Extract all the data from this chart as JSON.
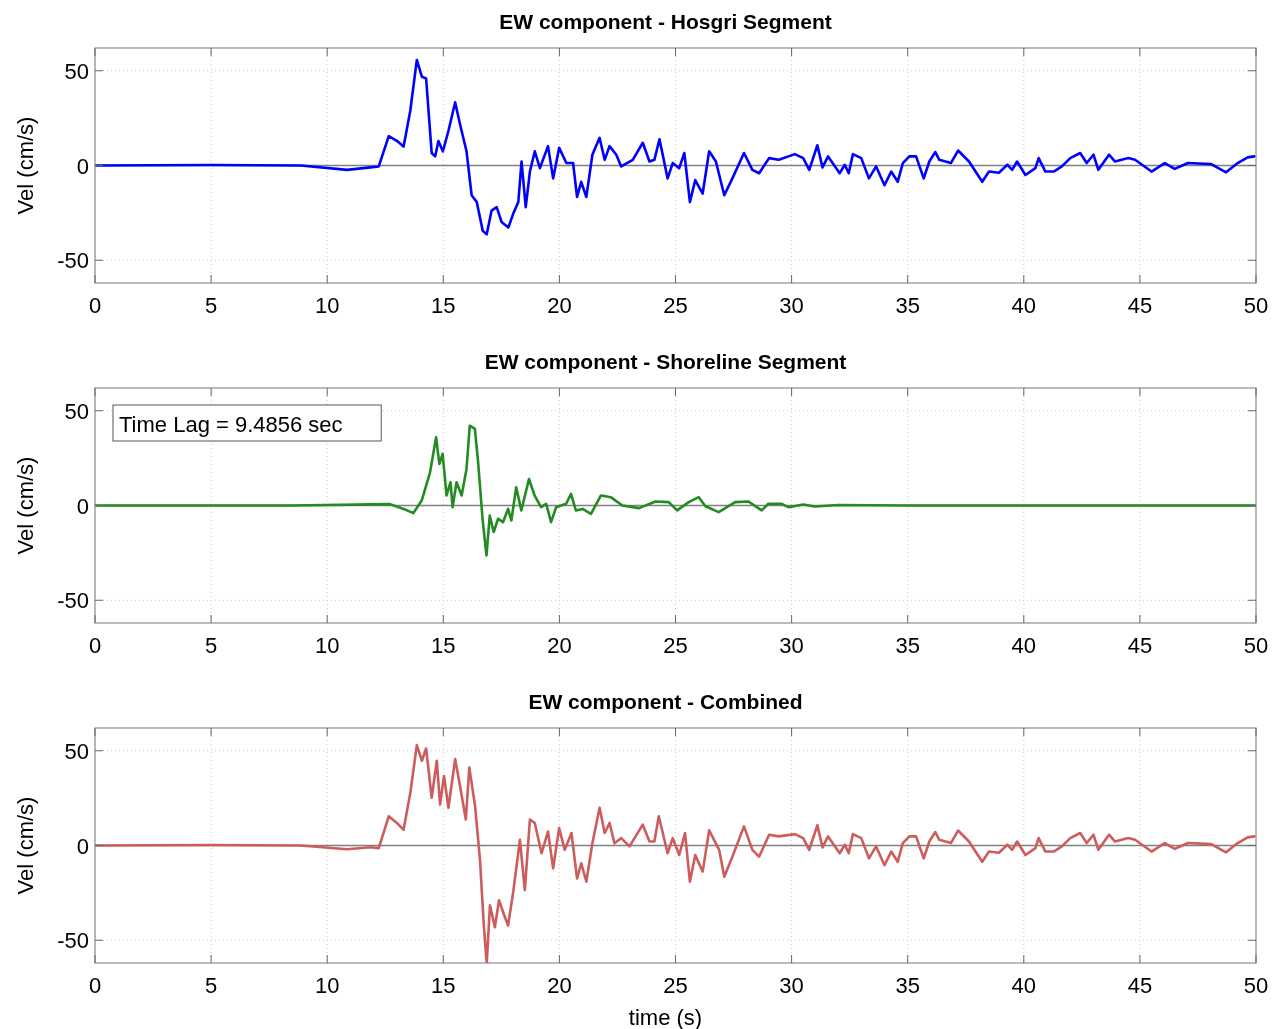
{
  "chart_data": [
    {
      "type": "line",
      "title": "EW component - Hosgri Segment",
      "ylabel": "Vel (cm/s)",
      "xlim": [
        0,
        50
      ],
      "ylim": [
        -62,
        62
      ],
      "xticks": [
        0,
        5,
        10,
        15,
        20,
        25,
        30,
        35,
        40,
        45,
        50
      ],
      "yticks": [
        -50,
        0,
        50
      ],
      "grid": true,
      "ref_lines": [
        {
          "axis": "y",
          "value": 0,
          "color": "#808080"
        }
      ],
      "series": [
        {
          "color": "#0000ff",
          "x": [
            0,
            5,
            8.86,
            10.86,
            11.86,
            12.22,
            12.65,
            13.0,
            13.29,
            13.58,
            13.86,
            14.08,
            14.26,
            14.5,
            14.65,
            14.79,
            14.98,
            15.22,
            15.51,
            15.72,
            16.0,
            16.22,
            16.44,
            16.7,
            16.87,
            17.08,
            17.3,
            17.51,
            17.8,
            18.01,
            18.23,
            18.37,
            18.55,
            18.73,
            18.94,
            19.16,
            19.51,
            19.73,
            19.99,
            20.3,
            20.59,
            20.76,
            20.94,
            21.16,
            21.42,
            21.73,
            21.95,
            22.16,
            22.45,
            22.66,
            23.16,
            23.59,
            23.88,
            24.09,
            24.31,
            24.66,
            24.88,
            25.16,
            25.38,
            25.62,
            25.85,
            26.17,
            26.45,
            26.74,
            27.1,
            27.45,
            27.95,
            28.31,
            28.6,
            29.03,
            29.45,
            30.14,
            30.5,
            30.76,
            31.11,
            31.33,
            31.57,
            32.07,
            32.29,
            32.46,
            32.64,
            33.0,
            33.33,
            33.64,
            34.0,
            34.29,
            34.57,
            34.79,
            35.07,
            35.36,
            35.69,
            35.93,
            36.19,
            36.36,
            36.86,
            37.17,
            37.64,
            38.21,
            38.5,
            38.93,
            39.29,
            39.5,
            39.71,
            40.07,
            40.5,
            40.64,
            40.93,
            41.29,
            41.64,
            42.0,
            42.43,
            42.71,
            43.0,
            43.21,
            43.67,
            43.93,
            44.5,
            44.79,
            45.5,
            46.07,
            46.5,
            47.07,
            48.07,
            48.71,
            49.21,
            49.64,
            49.93
          ],
          "values": [
            0,
            0.3,
            0,
            -2.3,
            -1,
            -0.5,
            15.5,
            13,
            10,
            29,
            55.7,
            46.8,
            45.9,
            6.6,
            4.8,
            12.9,
            7.5,
            18.2,
            33.4,
            21.8,
            7.5,
            -15.7,
            -19.3,
            -34.5,
            -36.3,
            -23.8,
            -22,
            -29.8,
            -32.7,
            -25.5,
            -19.3,
            2.1,
            -22,
            -3.2,
            7.5,
            -1.4,
            10.2,
            -6.8,
            9.3,
            1.3,
            1.3,
            -16.6,
            -8.6,
            -16.6,
            5.7,
            14.6,
            3,
            10.2,
            5.7,
            -0.5,
            3,
            12,
            2.1,
            3,
            13.8,
            -6.8,
            1.3,
            -1.4,
            6.6,
            -19.3,
            -7.7,
            -14.8,
            7.5,
            2.1,
            -15.7,
            -6.8,
            6.6,
            -2.3,
            -4.1,
            3.9,
            3,
            6,
            3.9,
            -2.3,
            10.7,
            -1,
            4.8,
            -4.1,
            0.4,
            -4.1,
            6,
            3.9,
            -6.8,
            -0.5,
            -10.4,
            -3.2,
            -8.6,
            1.3,
            4.8,
            4.8,
            -6.8,
            2.1,
            7.1,
            3,
            1.3,
            7.9,
            2.1,
            -8.6,
            -3.2,
            -3.8,
            0.4,
            -2.3,
            2.1,
            -5,
            -1.4,
            3.9,
            -3.2,
            -3.2,
            -0.5,
            3.9,
            6.6,
            1.3,
            5.7,
            -2.3,
            5.7,
            2.1,
            3.9,
            3,
            -3.2,
            1.3,
            -1.8,
            1.3,
            0.7,
            -3.6,
            1.3,
            4.3,
            4.8
          ]
        }
      ]
    },
    {
      "type": "line",
      "title": "EW component - Shoreline Segment",
      "ylabel": "Vel (cm/s)",
      "xlim": [
        0,
        50
      ],
      "ylim": [
        -62,
        62
      ],
      "xticks": [
        0,
        5,
        10,
        15,
        20,
        25,
        30,
        35,
        40,
        45,
        50
      ],
      "yticks": [
        -50,
        0,
        50
      ],
      "grid": true,
      "ref_lines": [
        {
          "axis": "y",
          "value": 0,
          "color": "#808080"
        }
      ],
      "annotations": [
        "Time Lag = 9.4856 sec"
      ],
      "series": [
        {
          "color": "#228b22",
          "x": [
            0,
            8.43,
            12.71,
            13.29,
            13.71,
            14.07,
            14.43,
            14.69,
            14.83,
            14.97,
            15.14,
            15.31,
            15.4,
            15.57,
            15.79,
            16.0,
            16.14,
            16.36,
            16.5,
            16.69,
            16.86,
            17.0,
            17.17,
            17.36,
            17.57,
            17.79,
            17.93,
            18.14,
            18.36,
            18.69,
            18.93,
            19.21,
            19.43,
            19.64,
            19.86,
            20.29,
            20.5,
            20.71,
            21.0,
            21.36,
            21.79,
            22.21,
            22.71,
            23.43,
            24.14,
            24.71,
            25.07,
            25.57,
            26.0,
            26.29,
            26.86,
            27.57,
            28.14,
            28.71,
            29.0,
            29.57,
            29.86,
            30.5,
            31,
            32,
            35,
            40,
            45,
            50
          ],
          "values": [
            0,
            0,
            0.7,
            -1.8,
            -4,
            2.6,
            17.5,
            36,
            21.9,
            27.2,
            5.3,
            12.3,
            -0.9,
            12.3,
            5.3,
            19.3,
            42.1,
            40.4,
            22.8,
            -7,
            -26.3,
            -5.3,
            -14,
            -7,
            -8.8,
            -1.8,
            -7.9,
            9.6,
            -2.6,
            14,
            5.3,
            -0.9,
            0.9,
            -8.8,
            -0.9,
            0.9,
            6.1,
            -2.6,
            -1.8,
            -4.4,
            5.3,
            4.4,
            0,
            -1.4,
            2.1,
            1.8,
            -2.6,
            1.8,
            4.4,
            -0.4,
            -3.5,
            1.8,
            2.1,
            -2.6,
            0.9,
            0.9,
            -0.9,
            0.5,
            -0.5,
            0.3,
            0,
            0,
            0,
            0
          ]
        }
      ]
    },
    {
      "type": "line",
      "title": "EW component - Combined",
      "xlabel": "time (s)",
      "ylabel": "Vel (cm/s)",
      "xlim": [
        0,
        50
      ],
      "ylim": [
        -62,
        62
      ],
      "xticks": [
        0,
        5,
        10,
        15,
        20,
        25,
        30,
        35,
        40,
        45,
        50
      ],
      "yticks": [
        -50,
        0,
        50
      ],
      "grid": true,
      "ref_lines": [
        {
          "axis": "y",
          "value": 0,
          "color": "#808080"
        }
      ],
      "series": [
        {
          "color": "#cd5c5c",
          "x": [
            0,
            5,
            8.86,
            10.86,
            11.86,
            12.22,
            12.65,
            13.0,
            13.29,
            13.58,
            13.86,
            14.08,
            14.26,
            14.5,
            14.72,
            14.86,
            15.03,
            15.22,
            15.51,
            15.72,
            15.97,
            16.12,
            16.37,
            16.58,
            16.75,
            16.87,
            17.01,
            17.22,
            17.4,
            17.6,
            17.79,
            18.01,
            18.3,
            18.51,
            18.73,
            18.94,
            19.23,
            19.51,
            19.73,
            19.99,
            20.23,
            20.52,
            20.76,
            20.94,
            21.16,
            21.42,
            21.73,
            21.95,
            22.16,
            22.37,
            22.66,
            23.02,
            23.59,
            23.88,
            24.09,
            24.28,
            24.66,
            24.88,
            25.16,
            25.41,
            25.62,
            25.85,
            26.17,
            26.45,
            26.88,
            27.1,
            27.45,
            27.95,
            28.31,
            28.6,
            29.03,
            29.45,
            30.14,
            30.5,
            30.76,
            31.11,
            31.33,
            31.57,
            32.07,
            32.29,
            32.46,
            32.64,
            33.0,
            33.33,
            33.64,
            34.0,
            34.29,
            34.57,
            34.79,
            35.07,
            35.36,
            35.69,
            35.93,
            36.19,
            36.36,
            36.86,
            37.17,
            37.64,
            38.21,
            38.5,
            38.93,
            39.29,
            39.5,
            39.71,
            40.07,
            40.5,
            40.64,
            40.93,
            41.29,
            41.64,
            42.0,
            42.43,
            42.71,
            43.0,
            43.21,
            43.67,
            43.93,
            44.5,
            44.79,
            45.5,
            46.07,
            46.5,
            47.07,
            48.07,
            48.71,
            49.21,
            49.64,
            49.93
          ],
          "values": [
            0,
            0.3,
            0,
            -2,
            -0.9,
            -1.4,
            15.4,
            11.9,
            8.3,
            27.8,
            53,
            44.7,
            51.2,
            25.2,
            44.7,
            21.6,
            36.7,
            19.9,
            45.6,
            31.4,
            13.7,
            41.1,
            20.7,
            -7.6,
            -43.1,
            -62,
            -31.6,
            -43.1,
            -28.9,
            -36,
            -42.2,
            -24.5,
            3,
            -23.6,
            13.7,
            11.9,
            -4.1,
            7.4,
            -12.1,
            9.2,
            -2.3,
            6.6,
            -17.4,
            -9.4,
            -19.1,
            1.2,
            19.9,
            6.6,
            11.9,
            1.2,
            3.9,
            -0.5,
            11,
            2.1,
            2.1,
            15.4,
            -4.1,
            3.9,
            -5,
            6.6,
            -19.1,
            -5,
            -13.8,
            8,
            -2.3,
            -16.5,
            -5.9,
            10.1,
            -2.3,
            -5.9,
            5.7,
            4.8,
            6,
            3.9,
            -2.3,
            10.7,
            -1,
            4.8,
            -4.1,
            0.4,
            -4.1,
            6,
            3.9,
            -6.8,
            -0.5,
            -10.4,
            -3.2,
            -8.6,
            1.3,
            4.8,
            4.8,
            -6.8,
            2.1,
            7.1,
            3,
            1.3,
            7.9,
            2.1,
            -8.6,
            -3.2,
            -3.8,
            0.4,
            -2.3,
            2.1,
            -5,
            -1.4,
            3.9,
            -3.2,
            -3.2,
            -0.5,
            3.9,
            6.6,
            1.3,
            5.7,
            -2.3,
            5.7,
            2.1,
            3.9,
            3,
            -3.2,
            1.3,
            -1.8,
            1.3,
            0.7,
            -3.6,
            1.3,
            4.3,
            4.8
          ]
        }
      ]
    }
  ]
}
